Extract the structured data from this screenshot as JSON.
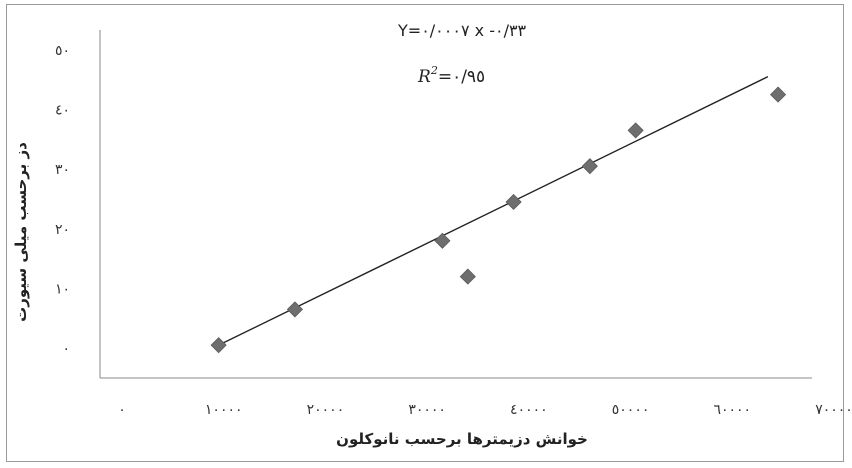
{
  "chart_data": {
    "type": "scatter",
    "x": [
      9500,
      17000,
      31500,
      34000,
      38500,
      46000,
      50500,
      64500
    ],
    "y": [
      0.5,
      6.5,
      18,
      12,
      24.5,
      30.5,
      36.5,
      42.5
    ],
    "xlim": [
      0,
      70000
    ],
    "ylim": [
      -5,
      55
    ],
    "x_ticks": [
      0,
      10000,
      20000,
      30000,
      40000,
      50000,
      60000,
      70000
    ],
    "x_tick_labels": [
      "٠",
      "١٠٠٠٠",
      "٢٠٠٠٠",
      "٣٠٠٠٠",
      "٤٠٠٠٠",
      "٥٠٠٠٠",
      "٦٠٠٠٠",
      "٧٠٠٠٠"
    ],
    "y_ticks": [
      0,
      10,
      20,
      30,
      40,
      50
    ],
    "y_tick_labels": [
      "٠",
      "١٠",
      "٢٠",
      "٣٠",
      "٤٠",
      "٥٠"
    ],
    "xlabel": "خوانش دزیمترها برحسب نانوکلون",
    "ylabel": "دز برحسب میلی سیورت",
    "trendline": {
      "x": [
        9500,
        63500
      ],
      "y": [
        0.5,
        45.5
      ]
    },
    "equation": "Y=٠/٠٠٠٧ x -٠/٣٣",
    "r2_label": "R",
    "r2_exponent": "2",
    "r2_value": "=٠/٩٥",
    "grid": false,
    "legend": "none",
    "marker": "diamond",
    "marker_color": "#6e6e6e",
    "line_color": "#222222"
  }
}
